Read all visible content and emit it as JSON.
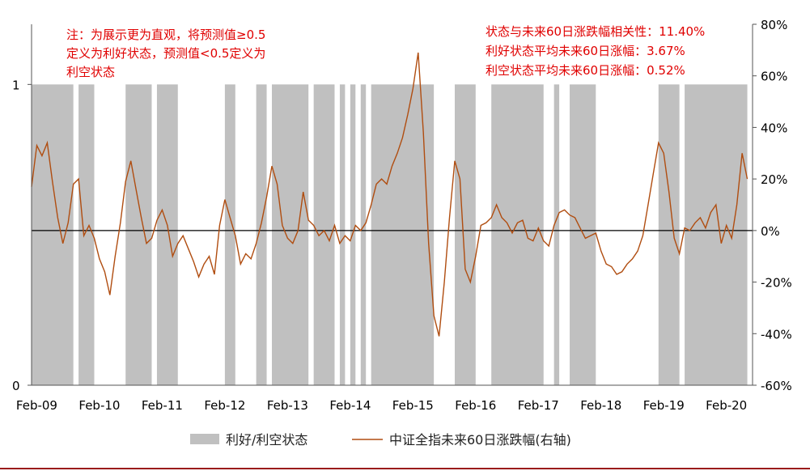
{
  "chart_data": {
    "type": "bar+line",
    "title": "",
    "xlabel": "",
    "ylabel_left": "",
    "ylabel_right": "",
    "x_ticks": [
      "Feb-09",
      "Feb-10",
      "Feb-11",
      "Feb-12",
      "Feb-13",
      "Feb-14",
      "Feb-15",
      "Feb-16",
      "Feb-17",
      "Feb-18",
      "Feb-19",
      "Feb-20"
    ],
    "left_axis": {
      "ylim": [
        0,
        1.2
      ],
      "ticks": [
        "0",
        "1"
      ]
    },
    "right_axis": {
      "ylim": [
        -0.6,
        0.8
      ],
      "ticks": [
        "-60%",
        "-40%",
        "-20%",
        "0%",
        "20%",
        "40%",
        "60%",
        "80%"
      ]
    },
    "state_series": {
      "name": "利好/利空状态",
      "color": "#c0c0c0",
      "value": 1,
      "favorable_periods": [
        [
          "2009-01",
          "2009-09"
        ],
        [
          "2009-10",
          "2010-01"
        ],
        [
          "2010-07",
          "2010-12"
        ],
        [
          "2011-01",
          "2011-05"
        ],
        [
          "2012-02",
          "2012-04"
        ],
        [
          "2012-08",
          "2012-10"
        ],
        [
          "2012-11",
          "2013-06"
        ],
        [
          "2013-07",
          "2013-11"
        ],
        [
          "2013-12",
          "2014-01"
        ],
        [
          "2014-02",
          "2014-03"
        ],
        [
          "2014-04",
          "2014-05"
        ],
        [
          "2014-06",
          "2015-06"
        ],
        [
          "2015-10",
          "2016-02"
        ],
        [
          "2016-05",
          "2017-03"
        ],
        [
          "2017-05",
          "2017-06"
        ],
        [
          "2017-08",
          "2018-01"
        ],
        [
          "2019-01",
          "2019-05"
        ],
        [
          "2019-06",
          "2020-06"
        ]
      ]
    },
    "line_series": {
      "name": "中证全指未来60日涨跌幅(右轴)",
      "color": "#b04d10",
      "points": [
        [
          "2009-01",
          0.17
        ],
        [
          "2009-02",
          0.33
        ],
        [
          "2009-03",
          0.29
        ],
        [
          "2009-04",
          0.34
        ],
        [
          "2009-05",
          0.19
        ],
        [
          "2009-06",
          0.05
        ],
        [
          "2009-07",
          -0.05
        ],
        [
          "2009-08",
          0.03
        ],
        [
          "2009-09",
          0.18
        ],
        [
          "2009-10",
          0.2
        ],
        [
          "2009-11",
          -0.02
        ],
        [
          "2009-12",
          0.02
        ],
        [
          "2010-01",
          -0.03
        ],
        [
          "2010-02",
          -0.11
        ],
        [
          "2010-03",
          -0.16
        ],
        [
          "2010-04",
          -0.25
        ],
        [
          "2010-05",
          -0.1
        ],
        [
          "2010-06",
          0.03
        ],
        [
          "2010-07",
          0.19
        ],
        [
          "2010-08",
          0.27
        ],
        [
          "2010-09",
          0.16
        ],
        [
          "2010-10",
          0.05
        ],
        [
          "2010-11",
          -0.05
        ],
        [
          "2010-12",
          -0.03
        ],
        [
          "2011-01",
          0.04
        ],
        [
          "2011-02",
          0.08
        ],
        [
          "2011-03",
          0.02
        ],
        [
          "2011-04",
          -0.1
        ],
        [
          "2011-05",
          -0.05
        ],
        [
          "2011-06",
          -0.02
        ],
        [
          "2011-07",
          -0.07
        ],
        [
          "2011-08",
          -0.12
        ],
        [
          "2011-09",
          -0.18
        ],
        [
          "2011-10",
          -0.13
        ],
        [
          "2011-11",
          -0.1
        ],
        [
          "2011-12",
          -0.17
        ],
        [
          "2012-01",
          0.02
        ],
        [
          "2012-02",
          0.12
        ],
        [
          "2012-03",
          0.05
        ],
        [
          "2012-04",
          -0.02
        ],
        [
          "2012-05",
          -0.13
        ],
        [
          "2012-06",
          -0.09
        ],
        [
          "2012-07",
          -0.11
        ],
        [
          "2012-08",
          -0.05
        ],
        [
          "2012-09",
          0.03
        ],
        [
          "2012-10",
          0.13
        ],
        [
          "2012-11",
          0.25
        ],
        [
          "2012-12",
          0.18
        ],
        [
          "2013-01",
          0.02
        ],
        [
          "2013-02",
          -0.03
        ],
        [
          "2013-03",
          -0.05
        ],
        [
          "2013-04",
          0.0
        ],
        [
          "2013-05",
          0.15
        ],
        [
          "2013-06",
          0.04
        ],
        [
          "2013-07",
          0.02
        ],
        [
          "2013-08",
          -0.02
        ],
        [
          "2013-09",
          0.0
        ],
        [
          "2013-10",
          -0.04
        ],
        [
          "2013-11",
          0.02
        ],
        [
          "2013-12",
          -0.05
        ],
        [
          "2014-01",
          -0.02
        ],
        [
          "2014-02",
          -0.04
        ],
        [
          "2014-03",
          0.02
        ],
        [
          "2014-04",
          0.0
        ],
        [
          "2014-05",
          0.03
        ],
        [
          "2014-06",
          0.1
        ],
        [
          "2014-07",
          0.18
        ],
        [
          "2014-08",
          0.2
        ],
        [
          "2014-09",
          0.18
        ],
        [
          "2014-10",
          0.25
        ],
        [
          "2014-11",
          0.3
        ],
        [
          "2014-12",
          0.36
        ],
        [
          "2015-01",
          0.45
        ],
        [
          "2015-02",
          0.55
        ],
        [
          "2015-03",
          0.69
        ],
        [
          "2015-04",
          0.38
        ],
        [
          "2015-05",
          -0.05
        ],
        [
          "2015-06",
          -0.33
        ],
        [
          "2015-07",
          -0.41
        ],
        [
          "2015-08",
          -0.2
        ],
        [
          "2015-09",
          0.05
        ],
        [
          "2015-10",
          0.27
        ],
        [
          "2015-11",
          0.2
        ],
        [
          "2015-12",
          -0.15
        ],
        [
          "2016-01",
          -0.2
        ],
        [
          "2016-02",
          -0.1
        ],
        [
          "2016-03",
          0.02
        ],
        [
          "2016-04",
          0.03
        ],
        [
          "2016-05",
          0.05
        ],
        [
          "2016-06",
          0.1
        ],
        [
          "2016-07",
          0.05
        ],
        [
          "2016-08",
          0.03
        ],
        [
          "2016-09",
          -0.01
        ],
        [
          "2016-10",
          0.03
        ],
        [
          "2016-11",
          0.04
        ],
        [
          "2016-12",
          -0.03
        ],
        [
          "2017-01",
          -0.04
        ],
        [
          "2017-02",
          0.01
        ],
        [
          "2017-03",
          -0.04
        ],
        [
          "2017-04",
          -0.06
        ],
        [
          "2017-05",
          0.02
        ],
        [
          "2017-06",
          0.07
        ],
        [
          "2017-07",
          0.08
        ],
        [
          "2017-08",
          0.06
        ],
        [
          "2017-09",
          0.05
        ],
        [
          "2017-10",
          0.01
        ],
        [
          "2017-11",
          -0.03
        ],
        [
          "2017-12",
          -0.02
        ],
        [
          "2018-01",
          -0.01
        ],
        [
          "2018-02",
          -0.08
        ],
        [
          "2018-03",
          -0.13
        ],
        [
          "2018-04",
          -0.14
        ],
        [
          "2018-05",
          -0.17
        ],
        [
          "2018-06",
          -0.16
        ],
        [
          "2018-07",
          -0.13
        ],
        [
          "2018-08",
          -0.11
        ],
        [
          "2018-09",
          -0.08
        ],
        [
          "2018-10",
          -0.02
        ],
        [
          "2018-11",
          0.1
        ],
        [
          "2018-12",
          0.22
        ],
        [
          "2019-01",
          0.34
        ],
        [
          "2019-02",
          0.3
        ],
        [
          "2019-03",
          0.15
        ],
        [
          "2019-04",
          -0.03
        ],
        [
          "2019-05",
          -0.09
        ],
        [
          "2019-06",
          0.01
        ],
        [
          "2019-07",
          0.0
        ],
        [
          "2019-08",
          0.03
        ],
        [
          "2019-09",
          0.05
        ],
        [
          "2019-10",
          0.01
        ],
        [
          "2019-11",
          0.07
        ],
        [
          "2019-12",
          0.1
        ],
        [
          "2020-01",
          -0.05
        ],
        [
          "2020-02",
          0.02
        ],
        [
          "2020-03",
          -0.03
        ],
        [
          "2020-04",
          0.1
        ],
        [
          "2020-05",
          0.3
        ],
        [
          "2020-06",
          0.2
        ]
      ]
    },
    "legend_placement": "bottom-center",
    "annotations": {
      "note_lines": [
        "注：为展示更为直观，将预测值≥0.5",
        "定义为利好状态，预测值<0.5定义为",
        "利空状态"
      ],
      "stats_lines": [
        "状态与未来60日涨跌幅相关性：11.40%",
        "利好状态平均未来60日涨幅：3.67%",
        "利空状态平均未来60日涨幅：0.52%"
      ],
      "color": "#e00000"
    }
  }
}
